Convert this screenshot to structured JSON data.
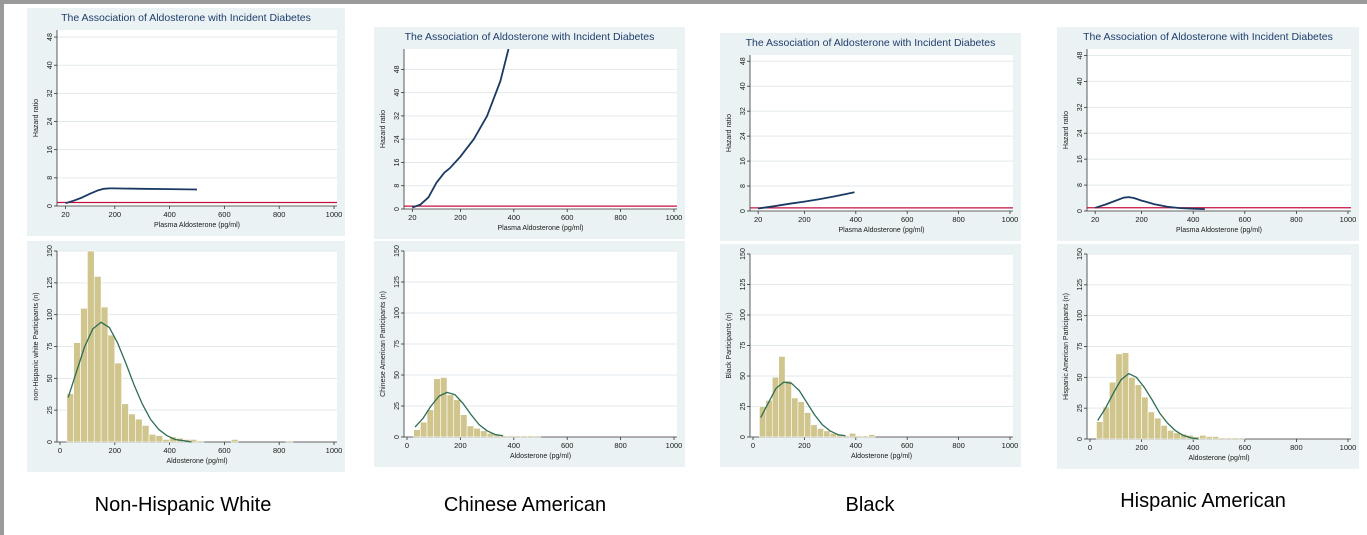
{
  "groups": [
    {
      "label": "Non-Hispanic White"
    },
    {
      "label": "Chinese American"
    },
    {
      "label": "Black"
    },
    {
      "label": "Hispanic American"
    }
  ],
  "chart_data": [
    {
      "type": "line",
      "title": "The Association of Aldosterone with Incident Diabetes",
      "xlabel": "Plasma Aldosterone (pg/ml)",
      "ylabel": "Hazard ratio",
      "xlim": [
        0,
        1000
      ],
      "ylim": [
        0,
        50
      ],
      "xticks": [
        20,
        200,
        400,
        600,
        800,
        1000
      ],
      "yticks": [
        0,
        8,
        16,
        24,
        32,
        40,
        48
      ],
      "reference_line": 1,
      "x": [
        20,
        50,
        80,
        110,
        140,
        160,
        180,
        200,
        300,
        400,
        500
      ],
      "y": [
        0.8,
        1.5,
        2.4,
        3.5,
        4.5,
        4.9,
        5.0,
        5.0,
        4.9,
        4.8,
        4.7
      ]
    },
    {
      "type": "bar",
      "xlabel": "Aldosterone (pg/ml)",
      "ylabel": "non-Hispanic white Participants (n)",
      "xlim": [
        0,
        1000
      ],
      "ylim": [
        0,
        150
      ],
      "xticks": [
        0,
        200,
        400,
        600,
        800,
        1000
      ],
      "yticks": [
        0,
        25,
        50,
        75,
        100,
        125,
        150
      ],
      "bin_width": 25,
      "bin_starts": [
        25,
        50,
        75,
        100,
        125,
        150,
        175,
        200,
        225,
        250,
        275,
        300,
        325,
        350,
        375,
        400,
        425,
        450,
        475,
        500,
        525,
        550,
        575,
        600,
        625,
        650,
        675,
        700,
        725,
        750,
        775,
        800,
        825
      ],
      "values": [
        38,
        78,
        105,
        150,
        130,
        106,
        84,
        62,
        30,
        22,
        18,
        13,
        6,
        5,
        2,
        4,
        3,
        2,
        2,
        1,
        0,
        0,
        0,
        0,
        2,
        0,
        0,
        0,
        0,
        0,
        0,
        0,
        1
      ],
      "curve_x": [
        30,
        60,
        90,
        120,
        150,
        180,
        210,
        240,
        270,
        300,
        330,
        360,
        390,
        420,
        450,
        480
      ],
      "curve_y": [
        35,
        55,
        75,
        89,
        94,
        90,
        78,
        62,
        45,
        30,
        18,
        10,
        5,
        2,
        1,
        0
      ]
    },
    {
      "type": "line",
      "title": "The Association of Aldosterone with Incident Diabetes",
      "xlabel": "Plasma Aldosterone (pg/ml)",
      "ylabel": "Hazard ratio",
      "xlim": [
        0,
        1000
      ],
      "ylim": [
        0,
        55
      ],
      "xticks": [
        20,
        200,
        400,
        600,
        800,
        1000
      ],
      "yticks": [
        0,
        8,
        16,
        24,
        32,
        40,
        48
      ],
      "reference_line": 1,
      "x": [
        20,
        50,
        80,
        110,
        140,
        160,
        200,
        250,
        300,
        350,
        380
      ],
      "y": [
        0.5,
        1.5,
        4,
        9,
        12.5,
        14,
        18,
        24,
        32,
        44,
        55
      ]
    },
    {
      "type": "bar",
      "xlabel": "Aldosterone (pg/ml)",
      "ylabel": "Chinese American Participants (n)",
      "xlim": [
        0,
        1000
      ],
      "ylim": [
        0,
        150
      ],
      "xticks": [
        0,
        200,
        400,
        600,
        800,
        1000
      ],
      "yticks": [
        0,
        25,
        50,
        75,
        100,
        125,
        150
      ],
      "bin_width": 25,
      "bin_starts": [
        25,
        50,
        75,
        100,
        125,
        150,
        175,
        200,
        225,
        250,
        275,
        300,
        325,
        350,
        375,
        400,
        425,
        450,
        475
      ],
      "values": [
        6,
        12,
        22,
        47,
        48,
        34,
        30,
        18,
        9,
        7,
        5,
        3,
        2,
        1,
        1,
        1,
        1,
        1,
        1
      ],
      "curve_x": [
        30,
        60,
        90,
        120,
        150,
        180,
        210,
        240,
        270,
        300,
        330,
        360
      ],
      "curve_y": [
        8,
        15,
        25,
        33,
        36,
        34,
        27,
        18,
        10,
        5,
        2,
        1
      ]
    },
    {
      "type": "line",
      "title": "The Association of Aldosterone with Incident Diabetes",
      "xlabel": "Plasma Aldosterone (pg/ml)",
      "ylabel": "Hazard ratio",
      "xlim": [
        0,
        1000
      ],
      "ylim": [
        0,
        50
      ],
      "xticks": [
        20,
        200,
        400,
        600,
        800,
        1000
      ],
      "yticks": [
        0,
        8,
        16,
        24,
        32,
        40,
        48
      ],
      "reference_line": 1,
      "x": [
        20,
        80,
        140,
        200,
        260,
        320,
        395
      ],
      "y": [
        0.8,
        1.5,
        2.3,
        3.0,
        3.8,
        4.7,
        6.0
      ]
    },
    {
      "type": "bar",
      "xlabel": "Aldosterone (pg/ml)",
      "ylabel": "Black Participants (n)",
      "xlim": [
        0,
        1000
      ],
      "ylim": [
        0,
        150
      ],
      "xticks": [
        0,
        200,
        400,
        600,
        800,
        1000
      ],
      "yticks": [
        0,
        25,
        50,
        75,
        100,
        125,
        150
      ],
      "bin_width": 25,
      "bin_starts": [
        25,
        50,
        75,
        100,
        125,
        150,
        175,
        200,
        225,
        250,
        275,
        300,
        325,
        350,
        375,
        400,
        425,
        450
      ],
      "values": [
        25,
        30,
        49,
        66,
        46,
        32,
        29,
        20,
        10,
        7,
        5,
        3,
        2,
        1,
        3,
        1,
        1,
        2
      ],
      "curve_x": [
        30,
        60,
        90,
        120,
        150,
        180,
        210,
        240,
        270,
        300,
        330,
        360
      ],
      "curve_y": [
        16,
        28,
        40,
        45,
        44,
        38,
        28,
        18,
        10,
        5,
        2,
        1
      ]
    },
    {
      "type": "line",
      "title": "The Association of Aldosterone with Incident Diabetes",
      "xlabel": "Plasma Aldosterone (pg/ml)",
      "ylabel": "Hazard ratio",
      "xlim": [
        0,
        1000
      ],
      "ylim": [
        0,
        50
      ],
      "xticks": [
        20,
        200,
        400,
        600,
        800,
        1000
      ],
      "yticks": [
        0,
        8,
        16,
        24,
        32,
        40,
        48
      ],
      "reference_line": 1,
      "x": [
        20,
        60,
        100,
        130,
        150,
        170,
        200,
        250,
        300,
        350,
        400,
        445
      ],
      "y": [
        1.0,
        2.0,
        3.2,
        4.1,
        4.3,
        4.0,
        3.2,
        2.1,
        1.3,
        0.9,
        0.7,
        0.6
      ]
    },
    {
      "type": "bar",
      "xlabel": "Aldosterone (pg/ml)",
      "ylabel": "Hispanic American Participants (n)",
      "xlim": [
        0,
        1000
      ],
      "ylim": [
        0,
        150
      ],
      "xticks": [
        0,
        200,
        400,
        600,
        800,
        1000
      ],
      "yticks": [
        0,
        25,
        50,
        75,
        100,
        125,
        150
      ],
      "bin_width": 25,
      "bin_starts": [
        25,
        50,
        75,
        100,
        125,
        150,
        175,
        200,
        225,
        250,
        275,
        300,
        325,
        350,
        375,
        400,
        425,
        450,
        475,
        500,
        525,
        550,
        575
      ],
      "values": [
        14,
        26,
        46,
        69,
        70,
        50,
        44,
        34,
        22,
        17,
        11,
        7,
        5,
        4,
        3,
        2,
        3,
        2,
        2,
        1,
        1,
        1,
        1
      ],
      "curve_x": [
        30,
        60,
        90,
        120,
        150,
        180,
        210,
        240,
        270,
        300,
        330,
        360,
        390,
        420
      ],
      "curve_y": [
        15,
        25,
        37,
        48,
        53,
        50,
        42,
        32,
        21,
        13,
        7,
        3,
        1,
        0
      ]
    }
  ]
}
